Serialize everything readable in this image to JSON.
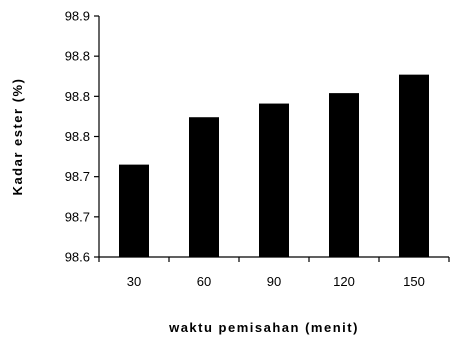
{
  "chart_data": {
    "type": "bar",
    "title": "",
    "xlabel": "waktu pemisahan (menit)",
    "ylabel": "Kadar ester (%)",
    "categories": [
      "30",
      "60",
      "90",
      "120",
      "150"
    ],
    "values": [
      98.715,
      98.774,
      98.791,
      98.804,
      98.827
    ],
    "ylim": [
      98.6,
      98.9
    ],
    "y_tick_values": [
      98.6,
      98.65,
      98.7,
      98.75,
      98.8,
      98.85,
      98.9
    ],
    "y_tick_labels": [
      "98.6",
      "98.7",
      "98.7",
      "98.8",
      "98.8",
      "98.8",
      "98.9"
    ],
    "bar_color": "#000000",
    "grid": false,
    "legend": "none"
  }
}
